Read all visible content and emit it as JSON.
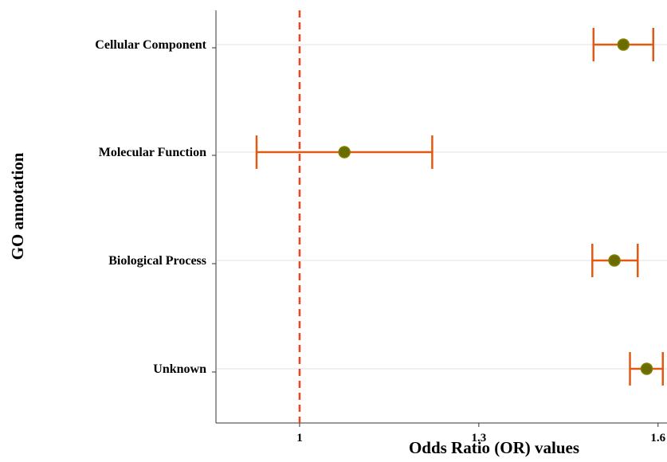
{
  "chart_data": {
    "type": "scatter",
    "subtype": "forest-plot",
    "title": "",
    "xlabel": "Odds Ratio (OR) values",
    "ylabel": "GO annotation",
    "xlim": [
      0.86,
      1.615
    ],
    "xticks": [
      {
        "value": 1,
        "label": "1"
      },
      {
        "value": 1.3,
        "label": "1.3"
      },
      {
        "value": 1.6,
        "label": "1.6"
      }
    ],
    "categories": [
      "Cellular Component",
      "Molecular Function",
      "Biological Process",
      "Unknown"
    ],
    "series": [
      {
        "estimates": [
          1.542,
          1.075,
          1.527,
          1.581
        ],
        "ci_lower": [
          1.492,
          0.928,
          1.49,
          1.553
        ],
        "ci_upper": [
          1.592,
          1.222,
          1.566,
          1.608
        ]
      }
    ],
    "reference_line": {
      "value": 1,
      "style": "dashed",
      "color": "#ee4422"
    },
    "grid": "horizontal-only",
    "colors": {
      "point": "#6b6b00",
      "point_outline": "#808000",
      "error_bar": "#e05a14",
      "grid": "#ececec",
      "axis": "#333333"
    }
  }
}
